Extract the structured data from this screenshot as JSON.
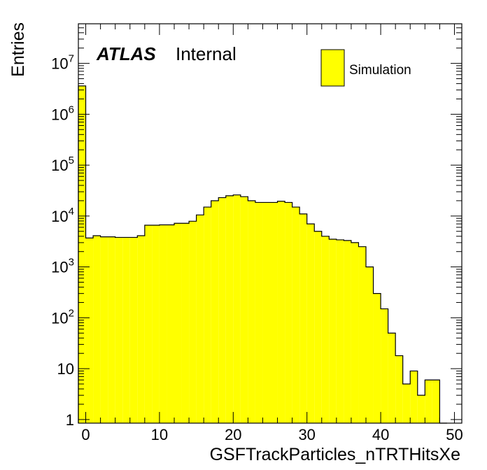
{
  "chart_data": {
    "type": "bar",
    "histogram": true,
    "xlabel": "GSFTrackParticles_nTRTHitsXe",
    "ylabel": "Entries",
    "label_bold": "ATLAS",
    "label_status": "Internal",
    "legend": [
      {
        "name": "Simulation",
        "color": "#ffff00"
      }
    ],
    "legend_position": "top-right",
    "fill_color": "#ffff00",
    "line_color": "#000000",
    "yscale": "log",
    "xlim": [
      -1,
      51
    ],
    "ylim": [
      0.85,
      60000000
    ],
    "grid": false,
    "x_ticks": [
      "0",
      "10",
      "20",
      "30",
      "40",
      "50"
    ],
    "y_tick_values": [
      1,
      10,
      100,
      1000,
      10000,
      100000,
      1000000,
      10000000
    ],
    "y_tick_labels": [
      {
        "base": "1",
        "exp": ""
      },
      {
        "base": "10",
        "exp": ""
      },
      {
        "base": "10",
        "exp": "2"
      },
      {
        "base": "10",
        "exp": "3"
      },
      {
        "base": "10",
        "exp": "4"
      },
      {
        "base": "10",
        "exp": "5"
      },
      {
        "base": "10",
        "exp": "6"
      },
      {
        "base": "10",
        "exp": "7"
      }
    ],
    "bin_edges": [
      -1,
      0,
      1,
      2,
      3,
      4,
      5,
      6,
      7,
      8,
      9,
      10,
      11,
      12,
      13,
      14,
      15,
      16,
      17,
      18,
      19,
      20,
      21,
      22,
      23,
      24,
      25,
      26,
      27,
      28,
      29,
      30,
      31,
      32,
      33,
      34,
      35,
      36,
      37,
      38,
      39,
      40,
      41,
      42,
      43,
      44,
      45,
      46,
      47,
      48,
      49
    ],
    "values": [
      3600000,
      3700,
      4100,
      3900,
      3900,
      3800,
      3800,
      3800,
      4100,
      6600,
      6600,
      6700,
      6700,
      7200,
      7200,
      7900,
      10500,
      15000,
      20000,
      23000,
      25000,
      26000,
      24000,
      20000,
      18500,
      18500,
      18500,
      19500,
      18500,
      15000,
      11000,
      7000,
      5000,
      4000,
      3500,
      3400,
      3300,
      3000,
      2500,
      1000,
      300,
      150,
      50,
      18,
      5,
      9,
      3,
      6,
      6,
      0
    ]
  }
}
